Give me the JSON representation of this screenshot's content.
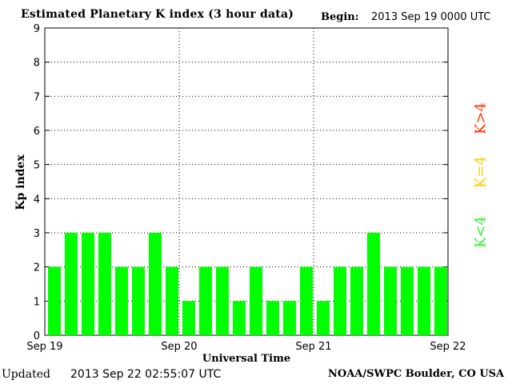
{
  "header": {
    "title": "Estimated Planetary K index (3 hour data)",
    "begin_label": "Begin:",
    "begin_value": "2013 Sep 19 0000 UTC"
  },
  "footer": {
    "updated_label": "Updated",
    "updated_value": "2013 Sep 22 02:55:07 UTC",
    "source": "NOAA/SWPC Boulder, CO USA"
  },
  "legend": [
    {
      "label": "K>4",
      "color": "#ff3300"
    },
    {
      "label": "K=4",
      "color": "#ffcc00"
    },
    {
      "label": "K<4",
      "color": "#33ee33"
    }
  ],
  "chart_data": {
    "type": "bar",
    "title": "Estimated Planetary K index (3 hour data)",
    "xlabel": "Universal Time",
    "ylabel": "Kp index",
    "ylim": [
      0,
      9
    ],
    "yticks": [
      0,
      1,
      2,
      3,
      4,
      5,
      6,
      7,
      8,
      9
    ],
    "xticks": [
      "Sep 19",
      "Sep 20",
      "Sep 21",
      "Sep 22"
    ],
    "grid": true,
    "bar_color": "#00ff00",
    "series": [
      {
        "values": [
          2,
          3,
          3,
          3,
          2,
          2,
          3,
          2,
          1,
          2,
          2,
          1,
          2,
          1,
          1,
          2,
          1,
          2,
          2,
          3,
          2,
          2,
          2,
          2
        ]
      }
    ]
  }
}
